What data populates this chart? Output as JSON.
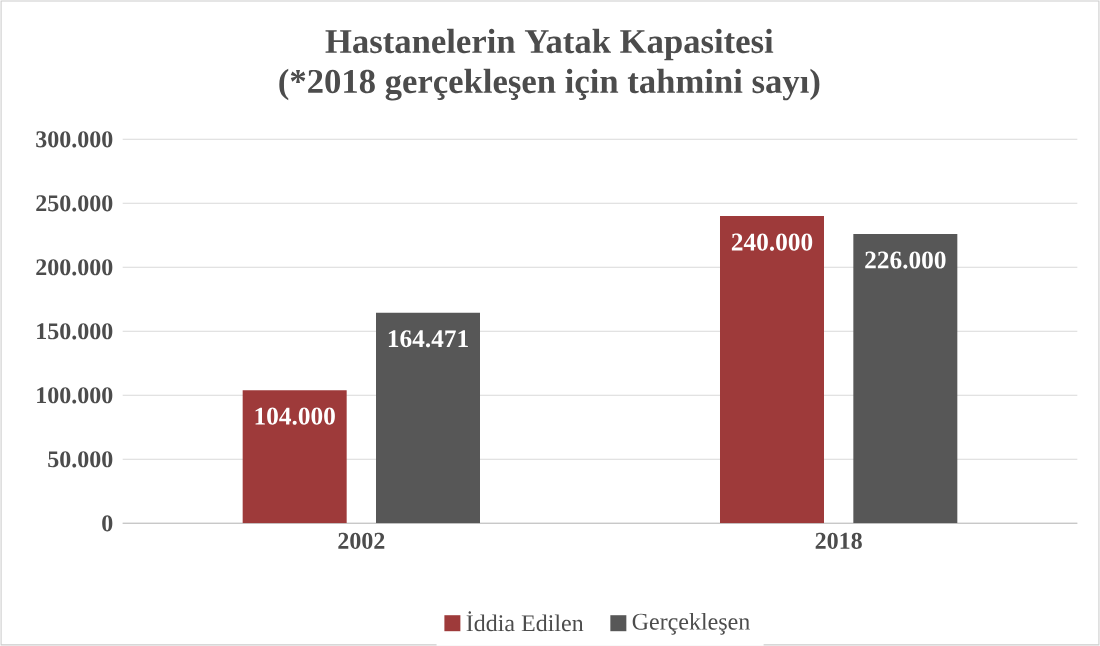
{
  "chart_data": {
    "type": "bar",
    "title": "Hastanelerin Yatak Kapasitesi",
    "subtitle": "(*2018 gerçekleşen için tahmini sayı)",
    "categories": [
      "2002",
      "2018"
    ],
    "series": [
      {
        "name": "İddia Edilen",
        "color": "#9e3a3a",
        "values": [
          104000,
          240000
        ],
        "value_labels": [
          "104.000",
          "240.000"
        ]
      },
      {
        "name": "Gerçekleşen",
        "color": "#575757",
        "values": [
          164471,
          226000
        ],
        "value_labels": [
          "164.471",
          "226.000"
        ]
      }
    ],
    "ylim": [
      0,
      300000
    ],
    "yticks": [
      0,
      {
        "value": 50000,
        "label": "50.000"
      },
      {
        "value": 100000,
        "label": "100.000"
      },
      {
        "value": 150000,
        "label": "150.000"
      },
      {
        "value": 200000,
        "label": "200.000"
      },
      {
        "value": 250000,
        "label": "250.000"
      },
      {
        "value": 300000,
        "label": "300.000"
      }
    ],
    "grid": true,
    "legend": "bottom"
  }
}
